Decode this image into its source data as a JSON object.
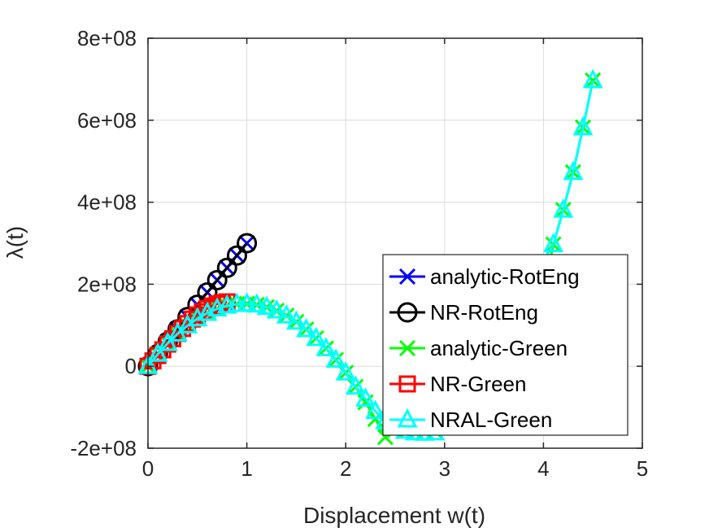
{
  "chart_data": {
    "type": "line",
    "xlabel": "Displacement w(t)",
    "ylabel": "λ(t)",
    "xlim": [
      0,
      5
    ],
    "ylim": [
      -200000000,
      800000000
    ],
    "x_ticks": [
      0,
      1,
      2,
      3,
      4,
      5
    ],
    "x_tick_labels": [
      "0",
      "1",
      "2",
      "3",
      "4",
      "5"
    ],
    "y_ticks": [
      -200000000,
      0,
      200000000,
      400000000,
      600000000,
      800000000
    ],
    "y_tick_labels": [
      "-2e+08",
      "0",
      "2e+08",
      "4e+08",
      "6e+08",
      "8e+08"
    ],
    "grid": true,
    "legend_position": "bottom-right",
    "series": [
      {
        "name": "analytic-RotEng",
        "color": "#0000ff",
        "marker": "x",
        "x": [
          0,
          0.1,
          0.2,
          0.3,
          0.4,
          0.5,
          0.6,
          0.7,
          0.8,
          0.9,
          1.0
        ],
        "y": [
          0,
          30000000,
          60000000,
          90000000,
          120000000,
          150000000,
          180000000,
          210000000,
          240000000,
          270000000,
          300000000
        ]
      },
      {
        "name": "NR-RotEng",
        "color": "#000000",
        "marker": "o",
        "x": [
          0,
          0.1,
          0.2,
          0.3,
          0.4,
          0.5,
          0.6,
          0.7,
          0.8,
          0.9,
          1.0
        ],
        "y": [
          0,
          30000000,
          60000000,
          90000000,
          120000000,
          150000000,
          180000000,
          210000000,
          240000000,
          270000000,
          300000000
        ]
      },
      {
        "name": "analytic-Green",
        "color": "#00ff00",
        "marker": "x",
        "x": [
          0,
          0.1,
          0.2,
          0.3,
          0.4,
          0.5,
          0.6,
          0.7,
          0.8,
          0.9,
          1.0,
          1.1,
          1.2,
          1.3,
          1.4,
          1.5,
          1.6,
          1.7,
          1.8,
          1.9,
          2.0,
          2.1,
          2.2,
          2.3,
          2.4,
          2.5,
          2.6,
          2.7,
          2.8,
          2.9,
          3.0,
          3.1,
          3.2,
          3.3,
          3.4,
          3.5,
          3.6,
          3.7,
          3.8,
          3.9,
          4.0,
          4.1,
          4.2,
          4.3,
          4.4,
          4.5
        ],
        "y": [
          0,
          29600000,
          56000000,
          79200000,
          99200000,
          116000000,
          129600000,
          140000000,
          147200000,
          151200000,
          152000000,
          149600000,
          144000000,
          135200000,
          123200000,
          108000000,
          89600000,
          68000000,
          43200000,
          15200000,
          -16000000,
          -50400000,
          -88000000,
          -128800000,
          -172800000,
          -155000000,
          -158000000,
          -160000000,
          -160000000,
          -157000000,
          -150000000,
          -140000000,
          -125000000,
          -106000000,
          -82000000,
          -53000000,
          -18000000,
          22000000,
          68000000,
          120000000,
          178000000,
          297000000,
          381000000,
          473000000,
          582000000,
          697000000
        ]
      },
      {
        "name": "NR-Green",
        "color": "#ff0000",
        "marker": "s",
        "x": [
          0,
          0.05,
          0.1,
          0.15,
          0.2,
          0.25,
          0.3,
          0.35,
          0.4,
          0.45,
          0.5,
          0.55,
          0.6,
          0.65,
          0.7,
          0.75,
          0.8
        ],
        "y": [
          0,
          13000000,
          26000000,
          40000000,
          54000000,
          67000000,
          80000000,
          92000000,
          104000000,
          115000000,
          125000000,
          133000000,
          141000000,
          147000000,
          152000000,
          155000000,
          157000000
        ]
      },
      {
        "name": "NRAL-Green",
        "color": "#00ffff",
        "marker": "^",
        "x": [
          0,
          0.1,
          0.2,
          0.3,
          0.4,
          0.5,
          0.6,
          0.7,
          0.8,
          0.9,
          1.0,
          1.1,
          1.2,
          1.3,
          1.4,
          1.5,
          1.6,
          1.7,
          1.8,
          1.9,
          2.0,
          2.1,
          2.2,
          2.3,
          2.4,
          2.5,
          2.6,
          2.7,
          2.8,
          2.9,
          4.1,
          4.2,
          4.3,
          4.4,
          4.5
        ],
        "y": [
          0,
          29600000,
          56000000,
          79200000,
          99200000,
          116000000,
          129600000,
          140000000,
          147200000,
          151200000,
          152000000,
          149600000,
          144000000,
          135200000,
          123200000,
          108000000,
          89600000,
          68000000,
          43200000,
          15200000,
          -16000000,
          -50400000,
          -80000000,
          -110000000,
          -135000000,
          -150000000,
          -158000000,
          -162000000,
          -163000000,
          -162000000,
          297000000,
          381000000,
          473000000,
          582000000,
          697000000
        ]
      }
    ]
  }
}
